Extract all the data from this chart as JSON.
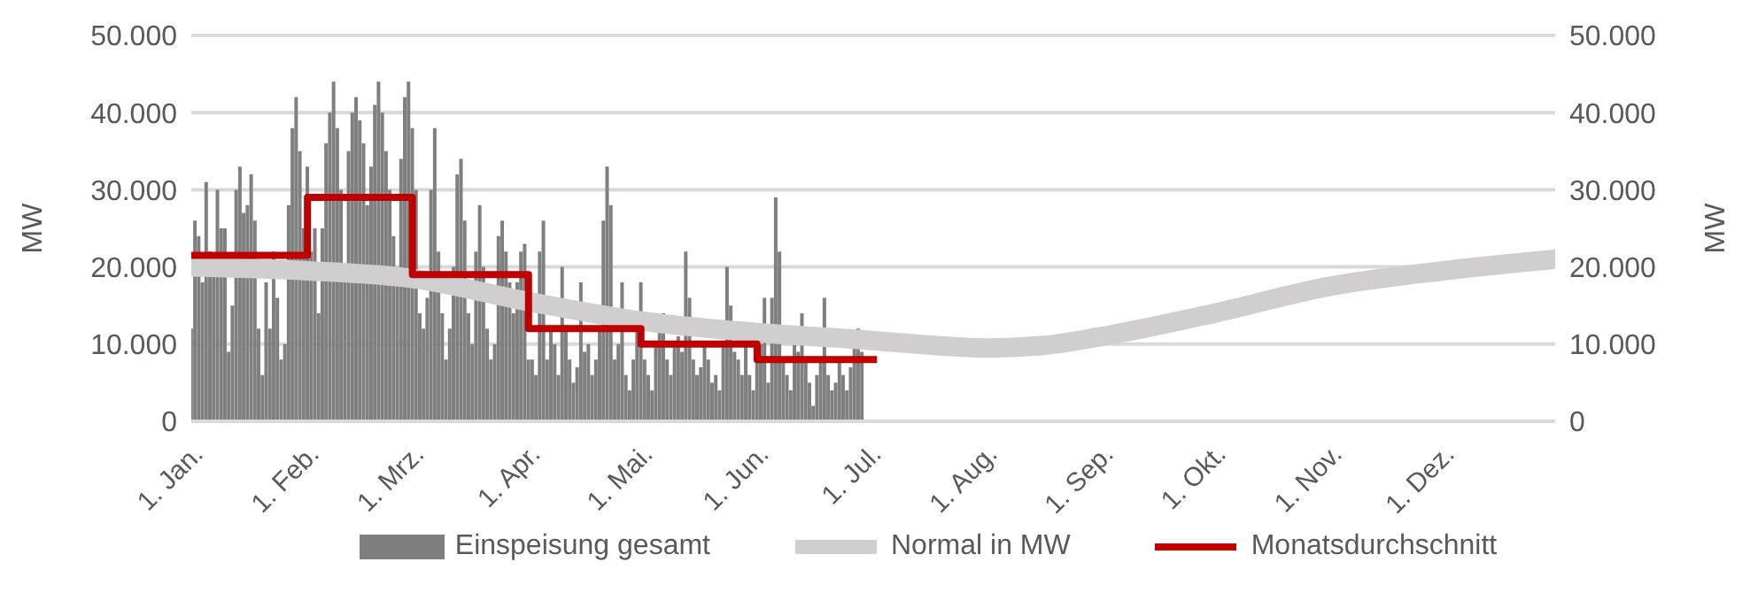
{
  "chart_data": {
    "type": "bar",
    "ylabel": "MW",
    "y2label": "MW",
    "xlim": [
      "--01-01",
      "--12-31"
    ],
    "xticks": [
      {
        "value": "--01-01",
        "label": "1. Jan."
      },
      {
        "value": "--02-01",
        "label": "1. Feb."
      },
      {
        "value": "--03-01",
        "label": "1. Mrz."
      },
      {
        "value": "--04-01",
        "label": "1. Apr."
      },
      {
        "value": "--05-01",
        "label": "1. Mai."
      },
      {
        "value": "--06-01",
        "label": "1. Jun."
      },
      {
        "value": "--07-01",
        "label": "1. Jul."
      },
      {
        "value": "--08-01",
        "label": "1. Aug."
      },
      {
        "value": "--09-01",
        "label": "1. Sep."
      },
      {
        "value": "--10-01",
        "label": "1. Okt."
      },
      {
        "value": "--11-01",
        "label": "1. Nov."
      },
      {
        "value": "--12-01",
        "label": "1. Dez."
      }
    ],
    "ylim": [
      0,
      50000
    ],
    "yticks": [
      {
        "value": 0,
        "label": "0"
      },
      {
        "value": 10000,
        "label": "10.000"
      },
      {
        "value": 20000,
        "label": "20.000"
      },
      {
        "value": 30000,
        "label": "30.000"
      },
      {
        "value": 40000,
        "label": "40.000"
      },
      {
        "value": 50000,
        "label": "50.000"
      }
    ],
    "y2lim": [
      0,
      50000
    ],
    "y2ticks": [
      {
        "value": 0,
        "label": "0"
      },
      {
        "value": 10000,
        "label": "10.000"
      },
      {
        "value": 20000,
        "label": "20.000"
      },
      {
        "value": 30000,
        "label": "30.000"
      },
      {
        "value": 40000,
        "label": "40.000"
      },
      {
        "value": 50000,
        "label": "50.000"
      }
    ],
    "grid": "y",
    "legend": "bottom",
    "marker": "none",
    "series": [
      {
        "name": "Einspeisung gesamt",
        "color": "#7f7f7f",
        "x": [
          "--01-01",
          "--01-02",
          "--01-03",
          "--01-04",
          "--01-05",
          "--01-06",
          "--01-07",
          "--01-08",
          "--01-09",
          "--01-10",
          "--01-11",
          "--01-12",
          "--01-13",
          "--01-14",
          "--01-15",
          "--01-16",
          "--01-17",
          "--01-18",
          "--01-19",
          "--01-20",
          "--01-21",
          "--01-22",
          "--01-23",
          "--01-24",
          "--01-25",
          "--01-26",
          "--01-27",
          "--01-28",
          "--01-29",
          "--01-30",
          "--01-31",
          "--02-01",
          "--02-02",
          "--02-03",
          "--02-04",
          "--02-05",
          "--02-06",
          "--02-07",
          "--02-08",
          "--02-09",
          "--02-10",
          "--02-11",
          "--02-12",
          "--02-13",
          "--02-14",
          "--02-15",
          "--02-16",
          "--02-17",
          "--02-18",
          "--02-19",
          "--02-20",
          "--02-21",
          "--02-22",
          "--02-23",
          "--02-24",
          "--02-25",
          "--02-26",
          "--02-27",
          "--02-28",
          "--03-01",
          "--03-02",
          "--03-03",
          "--03-04",
          "--03-05",
          "--03-06",
          "--03-07",
          "--03-08",
          "--03-09",
          "--03-10",
          "--03-11",
          "--03-12",
          "--03-13",
          "--03-14",
          "--03-15",
          "--03-16",
          "--03-17",
          "--03-18",
          "--03-19",
          "--03-20",
          "--03-21",
          "--03-22",
          "--03-23",
          "--03-24",
          "--03-25",
          "--03-26",
          "--03-27",
          "--03-28",
          "--03-29",
          "--03-30",
          "--03-31",
          "--04-01",
          "--04-02",
          "--04-03",
          "--04-04",
          "--04-05",
          "--04-06",
          "--04-07",
          "--04-08",
          "--04-09",
          "--04-10",
          "--04-11",
          "--04-12",
          "--04-13",
          "--04-14",
          "--04-15",
          "--04-16",
          "--04-17",
          "--04-18",
          "--04-19",
          "--04-20",
          "--04-21",
          "--04-22",
          "--04-23",
          "--04-24",
          "--04-25",
          "--04-26",
          "--04-27",
          "--04-28",
          "--04-29",
          "--04-30",
          "--05-01",
          "--05-02",
          "--05-03",
          "--05-04",
          "--05-05",
          "--05-06",
          "--05-07",
          "--05-08",
          "--05-09",
          "--05-10",
          "--05-11",
          "--05-12",
          "--05-13",
          "--05-14",
          "--05-15",
          "--05-16",
          "--05-17",
          "--05-18",
          "--05-19",
          "--05-20",
          "--05-21",
          "--05-22",
          "--05-23",
          "--05-24",
          "--05-25",
          "--05-26",
          "--05-27",
          "--05-28",
          "--05-29",
          "--05-30",
          "--05-31",
          "--06-01",
          "--06-02",
          "--06-03",
          "--06-04",
          "--06-05",
          "--06-06",
          "--06-07",
          "--06-08",
          "--06-09",
          "--06-10",
          "--06-11",
          "--06-12",
          "--06-13",
          "--06-14",
          "--06-15",
          "--06-16",
          "--06-17",
          "--06-18",
          "--06-19",
          "--06-20",
          "--06-21",
          "--06-22",
          "--06-23",
          "--06-24",
          "--06-25",
          "--06-26",
          "--06-27",
          "--06-28",
          "--06-29"
        ],
        "values": [
          12000,
          26000,
          24000,
          18000,
          31000,
          22000,
          19000,
          30000,
          25000,
          25000,
          9000,
          15000,
          30000,
          33000,
          27000,
          28000,
          32000,
          26000,
          12000,
          6000,
          18000,
          12000,
          22000,
          16000,
          8000,
          10000,
          28000,
          38000,
          42000,
          35000,
          25000,
          33000,
          22000,
          25000,
          14000,
          25000,
          36000,
          40000,
          44000,
          38000,
          30000,
          18000,
          35000,
          40000,
          42000,
          39000,
          36000,
          28000,
          33000,
          41000,
          44000,
          40000,
          35000,
          30000,
          24000,
          20000,
          34000,
          42000,
          44000,
          38000,
          30000,
          14000,
          12000,
          16000,
          30000,
          38000,
          22000,
          14000,
          8000,
          12000,
          20000,
          32000,
          34000,
          26000,
          14000,
          10000,
          22000,
          28000,
          20000,
          12000,
          8000,
          10000,
          24000,
          26000,
          22000,
          18000,
          14000,
          18000,
          22000,
          23000,
          8000,
          8000,
          6000,
          22000,
          26000,
          8000,
          12000,
          10000,
          6000,
          20000,
          12000,
          8000,
          5000,
          7000,
          18000,
          9000,
          10000,
          6000,
          8000,
          12000,
          26000,
          33000,
          28000,
          8000,
          10000,
          18000,
          6000,
          4000,
          8000,
          12000,
          18000,
          8000,
          6000,
          4000,
          10000,
          12000,
          14000,
          8000,
          6000,
          10000,
          11000,
          9000,
          22000,
          16000,
          8000,
          6000,
          7000,
          10000,
          8000,
          5000,
          6000,
          4000,
          10000,
          20000,
          15000,
          9000,
          8000,
          6000,
          10000,
          6000,
          4000,
          8000,
          10000,
          16000,
          5000,
          16000,
          29000,
          22000,
          8000,
          6000,
          4000,
          10000,
          9000,
          14000,
          8000,
          5000,
          2000,
          6000,
          8000,
          16000,
          6000,
          4000,
          5000,
          8000,
          6000,
          4000,
          7000,
          10000,
          12000,
          9000
        ]
      },
      {
        "name": "Normal in MW",
        "type": "line",
        "color": "#d0cece",
        "x": [
          "--01-01",
          "--02-01",
          "--03-01",
          "--04-01",
          "--05-01",
          "--06-01",
          "--07-01",
          "--07-19",
          "--08-01",
          "--08-16",
          "--09-01",
          "--10-01",
          "--11-01",
          "--12-01",
          "--12-31"
        ],
        "values": [
          20000,
          19500,
          18500,
          15500,
          13000,
          11500,
          10500,
          9800,
          9500,
          9800,
          11000,
          14000,
          17500,
          19500,
          21000
        ]
      },
      {
        "name": "Monatsdurchschnitt",
        "type": "step",
        "color": "#c00000",
        "x": [
          "--01-01",
          "--02-01",
          "--03-01",
          "--04-01",
          "--05-01",
          "--06-01",
          "--07-03"
        ],
        "values": [
          21500,
          29000,
          19000,
          12000,
          10000,
          8000,
          8000
        ]
      }
    ]
  }
}
